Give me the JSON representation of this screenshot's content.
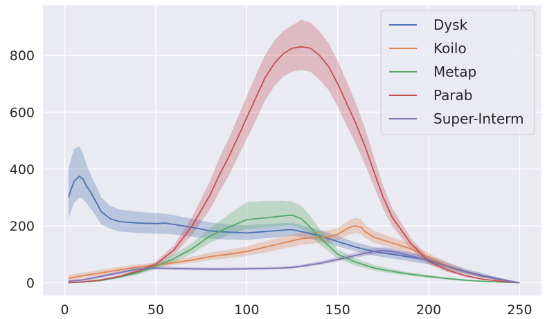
{
  "chart_data": {
    "type": "line",
    "title": "",
    "xlabel": "",
    "ylabel": "",
    "xlim": [
      -12,
      262
    ],
    "ylim": [
      -45,
      975
    ],
    "xticks": [
      0,
      50,
      100,
      150,
      200,
      250
    ],
    "yticks": [
      0,
      200,
      400,
      600,
      800
    ],
    "grid": true,
    "background": "#eaeaf2",
    "legend_position": "top-right",
    "series": [
      {
        "name": "Dysk",
        "color": "#4c72b0",
        "x": [
          2,
          5,
          8,
          10,
          12,
          15,
          18,
          20,
          25,
          30,
          40,
          50,
          55,
          60,
          70,
          80,
          90,
          100,
          110,
          120,
          125,
          130,
          140,
          150,
          160,
          170,
          180,
          190,
          200,
          210,
          220,
          230,
          240,
          250
        ],
        "y": [
          300,
          355,
          375,
          365,
          340,
          310,
          275,
          250,
          225,
          215,
          210,
          208,
          210,
          205,
          195,
          182,
          178,
          175,
          180,
          185,
          187,
          180,
          165,
          145,
          125,
          110,
          100,
          90,
          80,
          60,
          40,
          25,
          12,
          0
        ],
        "lower": [
          225,
          280,
          300,
          295,
          280,
          255,
          225,
          205,
          190,
          180,
          175,
          172,
          172,
          170,
          162,
          155,
          152,
          150,
          156,
          162,
          165,
          160,
          147,
          128,
          110,
          95,
          85,
          75,
          65,
          48,
          30,
          18,
          8,
          0
        ],
        "upper": [
          400,
          470,
          480,
          455,
          415,
          370,
          330,
          300,
          270,
          258,
          250,
          245,
          243,
          238,
          225,
          212,
          205,
          202,
          206,
          210,
          210,
          203,
          185,
          165,
          142,
          126,
          116,
          106,
          95,
          72,
          50,
          33,
          16,
          0
        ]
      },
      {
        "name": "Koilo",
        "color": "#dd8452",
        "x": [
          2,
          10,
          20,
          30,
          40,
          50,
          60,
          70,
          80,
          90,
          100,
          110,
          120,
          130,
          140,
          145,
          150,
          155,
          158,
          160,
          163,
          165,
          170,
          180,
          190,
          200,
          210,
          220,
          230,
          240,
          250
        ],
        "y": [
          15,
          25,
          35,
          45,
          55,
          62,
          70,
          80,
          92,
          100,
          110,
          125,
          140,
          155,
          160,
          162,
          170,
          190,
          198,
          200,
          195,
          180,
          160,
          140,
          120,
          90,
          60,
          38,
          22,
          10,
          0
        ],
        "lower": [
          5,
          15,
          25,
          35,
          45,
          54,
          62,
          70,
          80,
          86,
          94,
          106,
          120,
          133,
          140,
          143,
          150,
          166,
          172,
          174,
          170,
          158,
          140,
          122,
          104,
          76,
          50,
          30,
          17,
          7,
          0
        ],
        "upper": [
          27,
          36,
          46,
          56,
          65,
          70,
          80,
          92,
          106,
          116,
          128,
          146,
          162,
          177,
          182,
          184,
          192,
          215,
          225,
          228,
          222,
          205,
          182,
          160,
          138,
          104,
          72,
          46,
          28,
          13,
          0
        ]
      },
      {
        "name": "Metap",
        "color": "#55a868",
        "x": [
          2,
          10,
          20,
          30,
          40,
          50,
          60,
          70,
          80,
          90,
          100,
          110,
          120,
          125,
          130,
          135,
          140,
          145,
          150,
          160,
          170,
          180,
          190,
          200,
          210,
          220,
          230,
          240,
          250
        ],
        "y": [
          0,
          2,
          8,
          20,
          35,
          58,
          85,
          120,
          165,
          195,
          222,
          228,
          235,
          238,
          225,
          195,
          160,
          130,
          100,
          72,
          52,
          40,
          30,
          22,
          15,
          9,
          5,
          2,
          0
        ],
        "lower": [
          0,
          1,
          5,
          15,
          28,
          48,
          72,
          102,
          142,
          168,
          190,
          194,
          200,
          202,
          190,
          165,
          135,
          110,
          85,
          60,
          43,
          32,
          24,
          17,
          11,
          6,
          3,
          1,
          0
        ],
        "upper": [
          2,
          4,
          11,
          26,
          44,
          68,
          100,
          140,
          192,
          240,
          283,
          288,
          288,
          285,
          270,
          235,
          190,
          155,
          118,
          85,
          62,
          48,
          36,
          27,
          19,
          12,
          7,
          3,
          0
        ]
      },
      {
        "name": "Parab",
        "color": "#c44e52",
        "x": [
          2,
          10,
          20,
          30,
          40,
          50,
          60,
          70,
          80,
          85,
          90,
          95,
          100,
          105,
          110,
          115,
          120,
          125,
          130,
          135,
          140,
          145,
          150,
          155,
          160,
          165,
          170,
          175,
          180,
          190,
          200,
          210,
          220,
          230,
          240,
          250
        ],
        "y": [
          0,
          3,
          10,
          22,
          40,
          65,
          115,
          200,
          310,
          380,
          440,
          510,
          580,
          650,
          720,
          770,
          805,
          825,
          830,
          825,
          800,
          760,
          700,
          630,
          560,
          480,
          390,
          300,
          230,
          140,
          75,
          45,
          25,
          12,
          5,
          0
        ],
        "lower": [
          0,
          2,
          7,
          18,
          34,
          56,
          98,
          168,
          260,
          320,
          375,
          440,
          505,
          570,
          640,
          690,
          725,
          742,
          748,
          742,
          715,
          678,
          620,
          552,
          488,
          416,
          338,
          260,
          198,
          120,
          64,
          38,
          21,
          10,
          4,
          0
        ],
        "upper": [
          0,
          4,
          13,
          26,
          46,
          74,
          132,
          232,
          360,
          440,
          505,
          580,
          655,
          730,
          800,
          850,
          885,
          905,
          925,
          915,
          885,
          842,
          780,
          708,
          632,
          544,
          442,
          340,
          262,
          160,
          86,
          52,
          29,
          14,
          6,
          0
        ]
      },
      {
        "name": "Super-Interm",
        "color": "#8172b3",
        "x": [
          2,
          10,
          20,
          30,
          40,
          50,
          60,
          70,
          80,
          90,
          100,
          110,
          120,
          125,
          130,
          140,
          150,
          160,
          170,
          175,
          180,
          190,
          200,
          210,
          220,
          230,
          240,
          250
        ],
        "y": [
          5,
          10,
          22,
          35,
          48,
          52,
          50,
          49,
          48,
          48,
          49,
          50,
          52,
          54,
          58,
          68,
          82,
          96,
          110,
          113,
          110,
          95,
          78,
          58,
          38,
          22,
          10,
          0
        ],
        "lower": [
          2,
          6,
          17,
          29,
          42,
          46,
          45,
          44,
          44,
          44,
          45,
          46,
          48,
          50,
          54,
          62,
          75,
          88,
          100,
          103,
          100,
          86,
          70,
          52,
          34,
          19,
          8,
          0
        ],
        "upper": [
          8,
          14,
          27,
          41,
          54,
          58,
          56,
          54,
          53,
          53,
          54,
          55,
          57,
          59,
          63,
          75,
          90,
          106,
          122,
          126,
          122,
          105,
          87,
          65,
          43,
          25,
          12,
          0
        ]
      }
    ]
  }
}
